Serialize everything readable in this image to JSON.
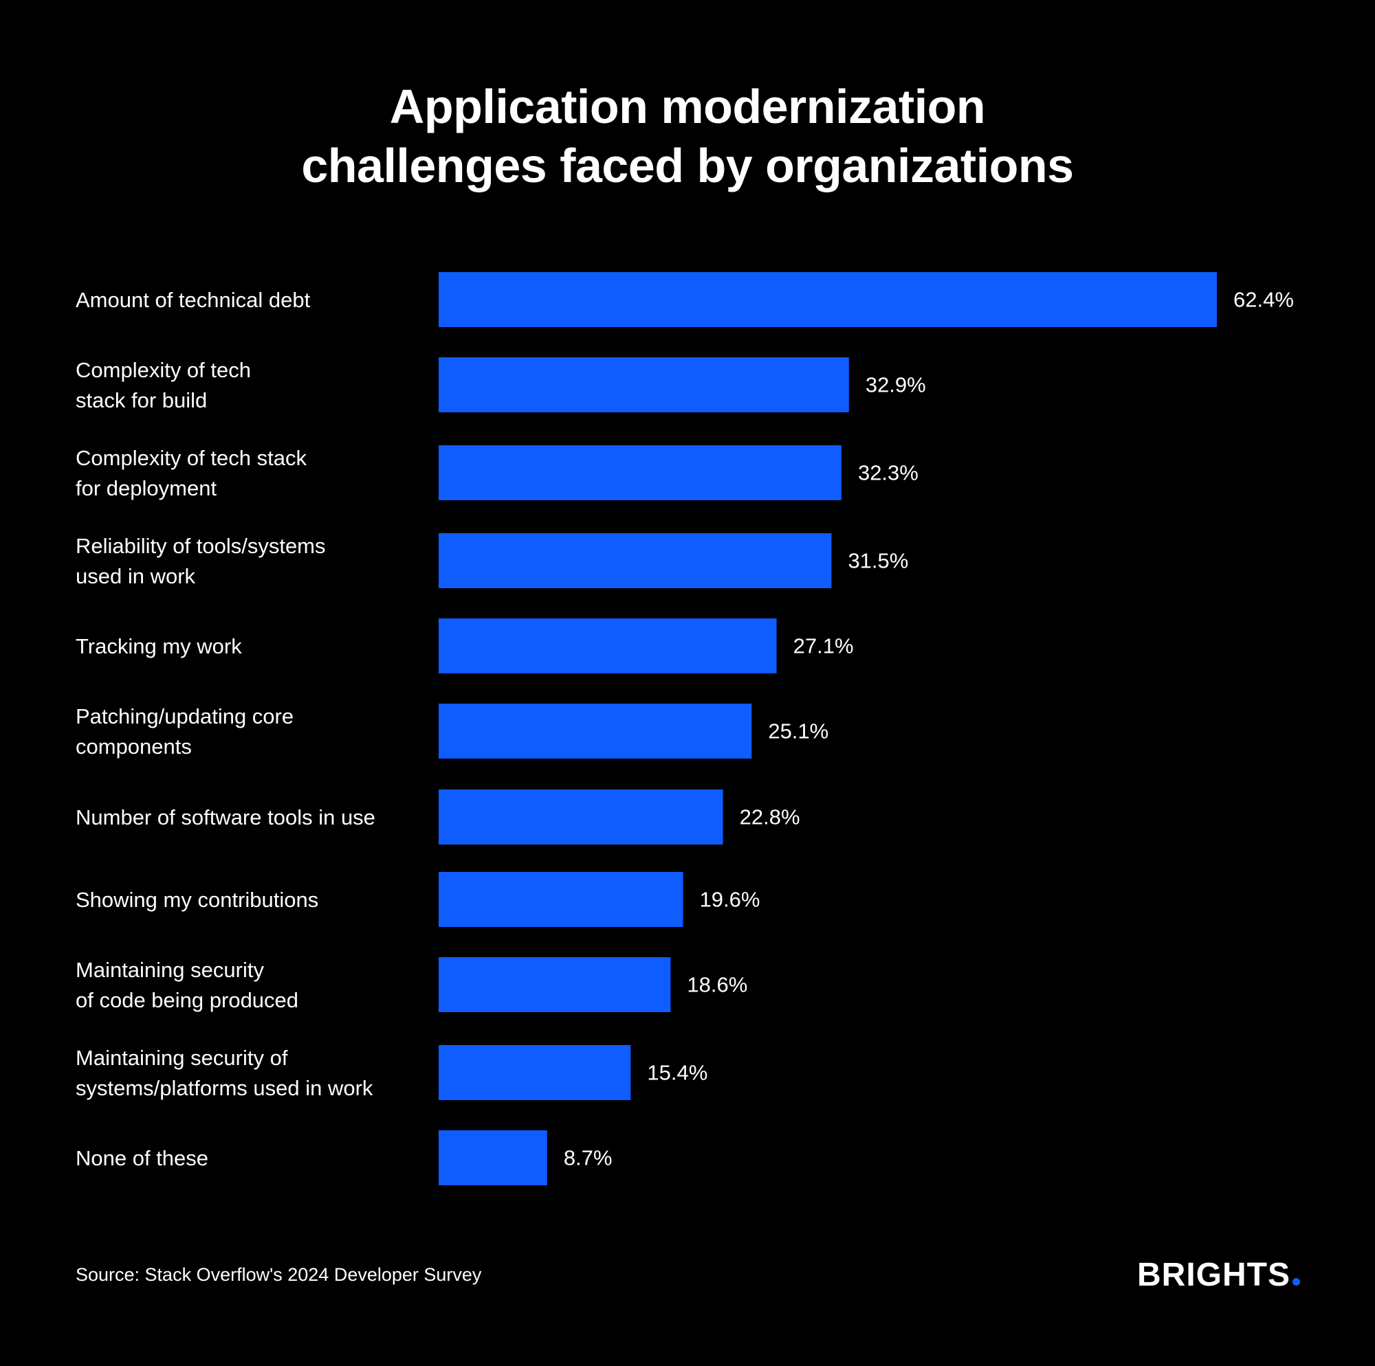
{
  "chart_data": {
    "type": "bar",
    "orientation": "horizontal",
    "title": "Application modernization\nchallenges faced by organizations",
    "categories": [
      "Amount of technical debt",
      "Complexity of tech\nstack for build",
      "Complexity of tech stack\nfor deployment",
      "Reliability of tools/systems\nused in work",
      "Tracking my work",
      "Patching/updating core\ncomponents",
      "Number of software tools in use",
      "Showing my contributions",
      "Maintaining security\nof code being produced",
      "Maintaining security of\nsystems/platforms used in work",
      "None of these"
    ],
    "values": [
      62.4,
      32.9,
      32.3,
      31.5,
      27.1,
      25.1,
      22.8,
      19.6,
      18.6,
      15.4,
      8.7
    ],
    "value_labels": [
      "62.4%",
      "32.9%",
      "32.3%",
      "31.5%",
      "27.1%",
      "25.1%",
      "22.8%",
      "19.6%",
      "18.6%",
      "15.4%",
      "8.7%"
    ],
    "unit": "%",
    "xlabel": "",
    "ylabel": "",
    "grid": false,
    "legend": "none",
    "bar_color": "#0f5cff",
    "background_color": "#000000",
    "text_color": "#ffffff"
  },
  "footer": {
    "source": "Source: Stack Overflow's 2024 Developer Survey",
    "brand": "BRIGHTS",
    "brand_dot_color": "#0f5cff"
  }
}
